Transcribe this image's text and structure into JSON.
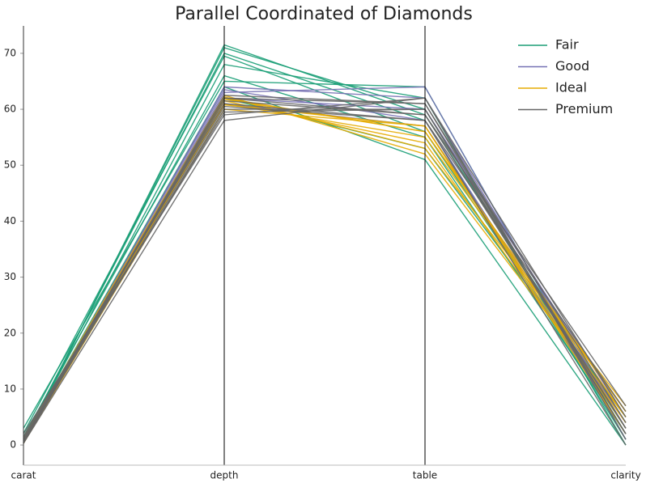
{
  "chart_data": {
    "type": "parallel",
    "title": "Parallel Coordinated of Diamonds",
    "categories": [
      "carat",
      "depth",
      "table",
      "clarity"
    ],
    "ylim": [
      -3.6,
      74.9
    ],
    "yticks": [
      0,
      10,
      20,
      30,
      40,
      50,
      60,
      70
    ],
    "legend": "upper right",
    "series": [
      {
        "name": "Fair",
        "color": "#1b9e77",
        "values": [
          [
            0.5,
            71,
            60,
            2
          ],
          [
            1.0,
            70,
            58,
            1
          ],
          [
            2.1,
            69.5,
            56,
            3
          ],
          [
            0.7,
            68,
            62,
            0
          ],
          [
            3.0,
            65,
            64,
            1
          ],
          [
            1.5,
            66,
            55,
            2
          ],
          [
            0.9,
            64,
            51,
            0
          ],
          [
            0.4,
            71.5,
            59,
            4
          ],
          [
            1.2,
            62,
            53,
            5
          ]
        ]
      },
      {
        "name": "Good",
        "color": "#7570b3",
        "values": [
          [
            0.3,
            64,
            62,
            3
          ],
          [
            0.8,
            63.5,
            58,
            2
          ],
          [
            1.1,
            62,
            60,
            5
          ],
          [
            0.5,
            63,
            64,
            1
          ],
          [
            0.7,
            61,
            57,
            4
          ]
        ]
      },
      {
        "name": "Ideal",
        "color": "#e6ab02",
        "values": [
          [
            0.3,
            61,
            55,
            6
          ],
          [
            0.4,
            62,
            56,
            5
          ],
          [
            0.7,
            61.5,
            54,
            4
          ],
          [
            1.0,
            60.8,
            57,
            3
          ],
          [
            0.5,
            62.2,
            53,
            7
          ],
          [
            0.3,
            60,
            57,
            2
          ],
          [
            1.2,
            62.5,
            52,
            5
          ],
          [
            0.8,
            61.8,
            56,
            6
          ]
        ]
      },
      {
        "name": "Premium",
        "color": "#666666",
        "values": [
          [
            0.3,
            58,
            62,
            1
          ],
          [
            0.5,
            60,
            60,
            2
          ],
          [
            1.0,
            62,
            59,
            3
          ],
          [
            1.5,
            61,
            58,
            0
          ],
          [
            0.4,
            62.5,
            61,
            4
          ],
          [
            2.0,
            59,
            62,
            5
          ],
          [
            0.7,
            60.5,
            58,
            6
          ],
          [
            0.9,
            61.5,
            59,
            7
          ],
          [
            1.2,
            59.5,
            60,
            3
          ],
          [
            0.3,
            62,
            61,
            2
          ]
        ]
      }
    ]
  }
}
